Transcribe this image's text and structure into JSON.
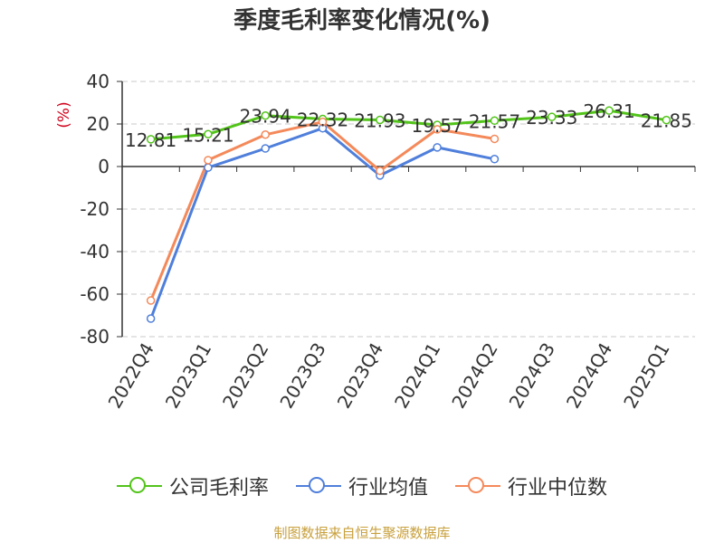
{
  "chart_data": {
    "type": "line",
    "title": "季度毛利率变化情况(%)",
    "ylabel": "(%)",
    "xlabel": "",
    "ylim": [
      -80,
      40
    ],
    "yticks": [
      40,
      20,
      0,
      -20,
      -40,
      -60,
      -80
    ],
    "categories": [
      "2022Q4",
      "2023Q1",
      "2023Q2",
      "2023Q3",
      "2023Q4",
      "2024Q1",
      "2024Q2",
      "2024Q3",
      "2024Q4",
      "2025Q1"
    ],
    "grid": true,
    "legend_position": "bottom",
    "series": [
      {
        "name": "公司毛利率",
        "color": "#52c41a",
        "values": [
          12.81,
          15.21,
          23.94,
          22.32,
          21.93,
          19.57,
          21.57,
          23.33,
          26.31,
          21.85
        ],
        "labels": [
          "12.81",
          "15.21",
          "23.94",
          "22.32",
          "21.93",
          "19.57",
          "21.57",
          "23.33",
          "26.31",
          "21.85"
        ]
      },
      {
        "name": "行业均值",
        "color": "#4f7fdb",
        "values": [
          -71.5,
          -0.5,
          8.5,
          18.0,
          -4.2,
          9.0,
          3.5,
          null,
          null,
          null
        ]
      },
      {
        "name": "行业中位数",
        "color": "#f4895a",
        "values": [
          -63.0,
          3.0,
          15.0,
          21.0,
          -2.0,
          17.5,
          13.0,
          null,
          null,
          null
        ]
      }
    ]
  },
  "legend": {
    "items": [
      "公司毛利率",
      "行业均值",
      "行业中位数"
    ]
  },
  "source": "制图数据来自恒生聚源数据库"
}
